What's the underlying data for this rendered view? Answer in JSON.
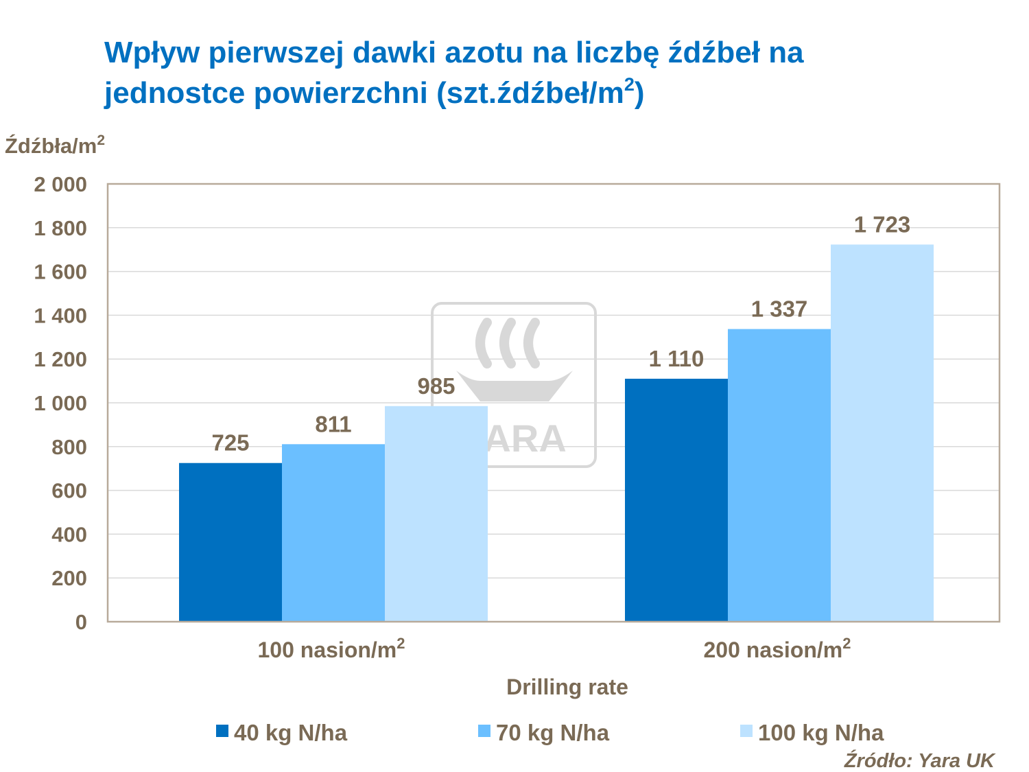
{
  "colors": {
    "title": "#0070c0",
    "text": "#7a6a55",
    "plot_border": "#b8aa9a",
    "grid": "#d9d9d9",
    "watermark": "#d8d8d8",
    "series": [
      "#0070c0",
      "#6bbfff",
      "#bde2ff"
    ]
  },
  "title_lines": [
    "Wpływ pierwszej dawki azotu na liczbę źdźbeł na",
    "jednostce powierzchni (szt.źdźbeł/m"
  ],
  "title_sup": "2",
  "title_tail": ")",
  "watermark_text": "YARA",
  "source": "Źródło: Yara UK",
  "chart_data": {
    "type": "bar",
    "ylabel": "Źdźbła/m",
    "ylabel_sup": "2",
    "xlabel": "Drilling rate",
    "categories": [
      "100 nasion/m",
      "200 nasion/m"
    ],
    "category_sup": "2",
    "ylim": [
      0,
      2000
    ],
    "yticks": [
      0,
      200,
      400,
      600,
      800,
      1000,
      1200,
      1400,
      1600,
      1800,
      2000
    ],
    "ytick_labels": [
      "0",
      "200",
      "400",
      "600",
      "800",
      "1 000",
      "1 200",
      "1 400",
      "1 600",
      "1 800",
      "2 000"
    ],
    "grid": true,
    "legend_position": "bottom",
    "series": [
      {
        "name": "40 kg N/ha",
        "values": [
          725,
          1110
        ],
        "labels": [
          "725",
          "1 110"
        ]
      },
      {
        "name": "70 kg N/ha",
        "values": [
          811,
          1337
        ],
        "labels": [
          "811",
          "1 337"
        ]
      },
      {
        "name": "100 kg N/ha",
        "values": [
          985,
          1723
        ],
        "labels": [
          "985",
          "1 723"
        ]
      }
    ]
  }
}
